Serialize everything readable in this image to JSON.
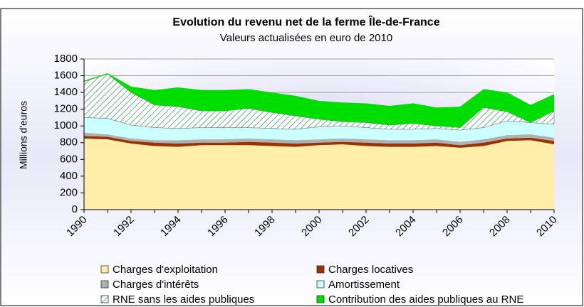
{
  "chart_data": {
    "type": "stacked_area",
    "title": "Evolution du revenu net de la ferme Île-de-France",
    "subtitle": "Valeurs actualisées en euro de 2010",
    "y_label": "Millions d'euros",
    "categories": [
      "1990",
      null,
      "1992",
      null,
      "1994",
      null,
      "1996",
      null,
      "1998",
      null,
      "2000",
      null,
      "2002",
      null,
      "2004",
      null,
      "2006",
      null,
      "2008",
      null,
      "2010"
    ],
    "ylim": [
      0,
      1800
    ],
    "yticks": [
      0,
      200,
      400,
      600,
      800,
      1000,
      1200,
      1400,
      1600,
      1800
    ],
    "grid": true,
    "series": [
      {
        "name": "Charges d'exploitation",
        "color": "#ffeeaa",
        "values": [
          850,
          840,
          790,
          760,
          750,
          770,
          770,
          770,
          760,
          750,
          770,
          780,
          760,
          750,
          750,
          760,
          740,
          760,
          820,
          830,
          780
        ]
      },
      {
        "name": "Charges locatives",
        "color": "#993300",
        "values": [
          30,
          30,
          30,
          40,
          40,
          30,
          30,
          40,
          40,
          40,
          30,
          30,
          40,
          40,
          40,
          40,
          30,
          40,
          30,
          30,
          40
        ]
      },
      {
        "name": "Charges d'intérêts",
        "color": "#b0b0b0",
        "values": [
          40,
          30,
          30,
          30,
          40,
          40,
          40,
          40,
          40,
          40,
          40,
          40,
          40,
          40,
          40,
          40,
          40,
          40,
          40,
          40,
          40
        ]
      },
      {
        "name": "Amortissement",
        "color": "#ccffff",
        "values": [
          180,
          190,
          160,
          150,
          140,
          140,
          140,
          130,
          130,
          130,
          150,
          150,
          140,
          130,
          130,
          130,
          140,
          140,
          170,
          140,
          160
        ]
      },
      {
        "name": "RNE sans les aides publiques",
        "color": "#339966",
        "pattern": "hatch",
        "values": [
          430,
          530,
          390,
          270,
          260,
          200,
          200,
          230,
          190,
          160,
          90,
          50,
          60,
          50,
          70,
          30,
          30,
          240,
          110,
          0,
          160
        ]
      },
      {
        "name": "Contribution des aides publiques au RNE",
        "color": "#00dd00",
        "values": [
          10,
          10,
          70,
          180,
          230,
          250,
          250,
          230,
          240,
          240,
          220,
          230,
          230,
          230,
          240,
          220,
          250,
          220,
          230,
          210,
          200
        ]
      }
    ]
  }
}
